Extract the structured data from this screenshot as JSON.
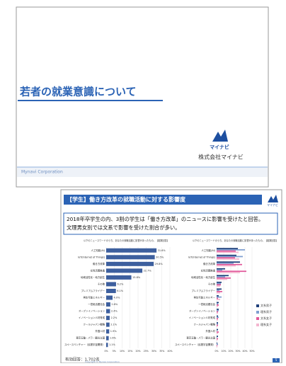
{
  "slide1": {
    "title": "若者の就業意識について",
    "logo": "マイナビ",
    "company": "株式会社マイナビ",
    "footer": "Mynavi Corporation"
  },
  "slide2": {
    "header": "【学生】働き方改革の就職活動に対する影響度",
    "logo": "マイナビ",
    "body": [
      "2018年卒学生の内、3割の学生は「働き方改革」のニュースに影響を受けたと回答。",
      "文理男女別では文系で影響を受けた割合が多い。"
    ],
    "respondents": "有効回答：1,702名",
    "copyright": "Copyright © Mynavi Corporation",
    "page": "5",
    "charts": [
      {
        "type": "bar",
        "title": "以下のニュースワードのうち、あなたの就職活動に影響があったもの。【複数回答】",
        "color": "#3d5f9e",
        "categories": [
          "人工知能(AI)",
          "IoT(Internet of Things)",
          "働き方改革",
          "女性活躍推進",
          "地域活性化・地方創生",
          "その他",
          "プレミアムフライデー",
          "再生可能エネルギー",
          "一億総活躍社会",
          "オープンイノベーション",
          "イノベーション人材育成",
          "クールジャパン戦略",
          "外国人材",
          "東京五輪・パラ・観光立国",
          "スペースベンチャー（民間宇宙開発）"
        ],
        "values": [
          31.6,
          30.5,
          29.8,
          22.7,
          15.8,
          6.2,
          6.1,
          4.0,
          2.6,
          2.4,
          2.2,
          2.1,
          1.9,
          1.6,
          1.1
        ],
        "value_labels": [
          "31.6%",
          "30.5%",
          "29.8%",
          "22.7%",
          "15.8%",
          "6.2%",
          "6.1%",
          "4.0%",
          "2.6%",
          "2.4%",
          "2.2%",
          "2.1%",
          "1.9%",
          "1.6%",
          "1.1%"
        ],
        "xlim": [
          0,
          40
        ],
        "xticks": [
          {
            "value": 0,
            "label": "0%"
          },
          {
            "value": 5,
            "label": "5%"
          },
          {
            "value": 10,
            "label": "10%"
          },
          {
            "value": 15,
            "label": "15%"
          },
          {
            "value": 20,
            "label": "20%"
          },
          {
            "value": 25,
            "label": "25%"
          },
          {
            "value": 30,
            "label": "30%"
          },
          {
            "value": 35,
            "label": "35%"
          },
          {
            "value": 40,
            "label": "40%"
          }
        ]
      },
      {
        "type": "grouped-bar",
        "title": "以下のニュースワードのうち、あなたの就職活動に影響があったもの。【複数回答】",
        "categories": [
          "人工知能(AI)",
          "IoT(Internet of Things)",
          "働き方改革",
          "女性活躍推進",
          "地域活性化・地方創生",
          "その他",
          "プレミアムフライデー",
          "再生可能エネルギー",
          "一億総活躍社会",
          "オープンイノベーション",
          "イノベーション人材育成",
          "クールジャパン戦略",
          "外国人材",
          "東京五輪・パラ・観光立国",
          "スペースベンチャー（民間宇宙開発）"
        ],
        "series": [
          {
            "name": "文系男子",
            "color": "#1f3f7a",
            "values": [
              30,
              28,
              33,
              12,
              17,
              7,
              7,
              3,
              3,
              3,
              2,
              2,
              2,
              2,
              1
            ]
          },
          {
            "name": "理系男子",
            "color": "#7f9fd0",
            "values": [
              40,
              37,
              24,
              8,
              12,
              6,
              4,
              7,
              2,
              3,
              3,
              2,
              1,
              1,
              2
            ]
          },
          {
            "name": "文系女子",
            "color": "#e0589a",
            "values": [
              27,
              26,
              36,
              42,
              20,
              6,
              8,
              2,
              3,
              2,
              2,
              2,
              3,
              2,
              1
            ]
          },
          {
            "name": "理系女子",
            "color": "#f4b6cf",
            "values": [
              31,
              32,
              27,
              33,
              15,
              5,
              5,
              5,
              2,
              2,
              2,
              1,
              2,
              1,
              1
            ]
          }
        ],
        "xlim": [
          0,
          50
        ],
        "xticks": [
          {
            "value": 0,
            "label": "0%"
          },
          {
            "value": 10,
            "label": "10%"
          },
          {
            "value": 20,
            "label": "20%"
          },
          {
            "value": 30,
            "label": "30%"
          },
          {
            "value": 40,
            "label": "40%"
          },
          {
            "value": 50,
            "label": "50%"
          }
        ]
      }
    ]
  }
}
